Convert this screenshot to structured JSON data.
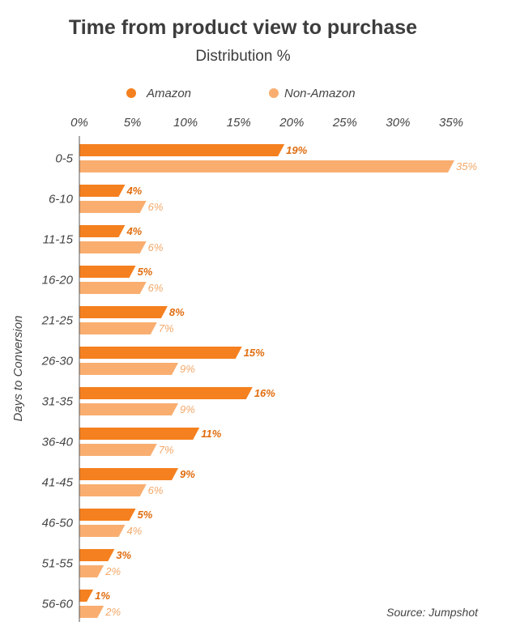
{
  "chart_data": {
    "type": "bar",
    "orientation": "horizontal",
    "title": "Time from product view to purchase",
    "subtitle": "Distribution %",
    "ylabel": "Days to Conversion",
    "xlabel": "",
    "xlim": [
      0,
      35
    ],
    "x_ticks": [
      "0%",
      "5%",
      "10%",
      "15%",
      "20%",
      "25%",
      "30%",
      "35%"
    ],
    "x_tick_values": [
      0,
      5,
      10,
      15,
      20,
      25,
      30,
      35
    ],
    "legend_position": "top",
    "grid": false,
    "categories": [
      "0-5",
      "6-10",
      "11-15",
      "16-20",
      "21-25",
      "26-30",
      "31-35",
      "36-40",
      "41-45",
      "46-50",
      "51-55",
      "56-60"
    ],
    "series": [
      {
        "name": "Amazon",
        "color": "#f5801f",
        "values": [
          19,
          4,
          4,
          5,
          8,
          15,
          16,
          11,
          9,
          5,
          3,
          1
        ],
        "labels": [
          "19%",
          "4%",
          "4%",
          "5%",
          "8%",
          "15%",
          "16%",
          "11%",
          "9%",
          "5%",
          "3%",
          "1%"
        ]
      },
      {
        "name": "Non-Amazon",
        "color": "#f9ae70",
        "values": [
          35,
          6,
          6,
          6,
          7,
          9,
          9,
          7,
          6,
          4,
          2,
          2
        ],
        "labels": [
          "35%",
          "6%",
          "6%",
          "6%",
          "7%",
          "9%",
          "9%",
          "7%",
          "6%",
          "4%",
          "2%",
          "2%"
        ]
      }
    ],
    "source": "Source: Jumpshot"
  }
}
